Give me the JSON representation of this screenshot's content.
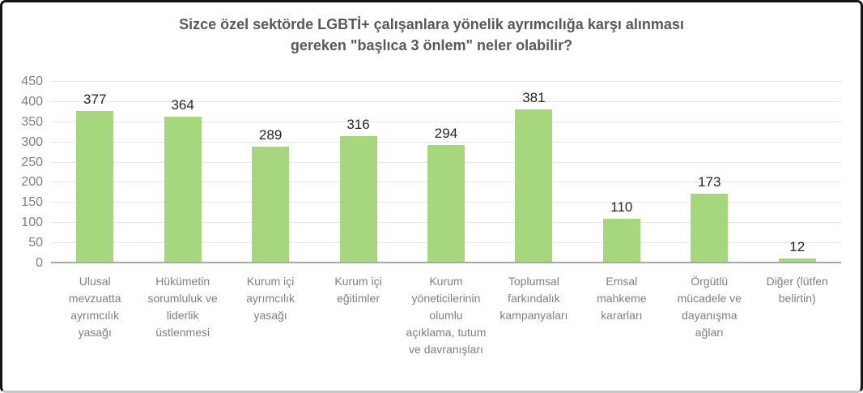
{
  "chart_data": {
    "type": "bar",
    "title": "Sizce özel sektörde LGBTİ+ çalışanlara yönelik ayrımcılığa karşı alınması gereken \"başlıca 3 önlem\" neler olabilir?",
    "title_lines": [
      "Sizce özel sektörde LGBTİ+ çalışanlara yönelik ayrımcılığa karşı alınması",
      "gereken \"başlıca 3 önlem\" neler olabilir?"
    ],
    "categories": [
      "Ulusal mevzuatta ayrımcılık yasağı",
      "Hükümetin sorumluluk ve liderlik üstlenmesi",
      "Kurum içi ayrımcılık yasağı",
      "Kurum içi eğitimler",
      "Kurum yöneticilerinin olumlu açıklama, tutum ve davranışları",
      "Toplumsal farkındalık kampanyaları",
      "Emsal mahkeme kararları",
      "Örgütlü mücadele ve dayanışma ağları",
      "Diğer (lütfen belirtin)"
    ],
    "values": [
      377,
      364,
      289,
      316,
      294,
      381,
      110,
      173,
      12
    ],
    "xlabel": "",
    "ylabel": "",
    "ylim": [
      0,
      450
    ],
    "yticks": [
      0,
      50,
      100,
      150,
      200,
      250,
      300,
      350,
      400,
      450
    ],
    "grid": true,
    "legend": "none",
    "colors": {
      "bar": "#A6D67E",
      "gridline": "#E7E7E7",
      "axis_line": "#A8A8A8",
      "title": "#595959",
      "axis_tick_label": "#808080",
      "category_label": "#808080",
      "value_label": "#262626",
      "frame_border": "#141414",
      "background": "#FFFFFF"
    }
  }
}
